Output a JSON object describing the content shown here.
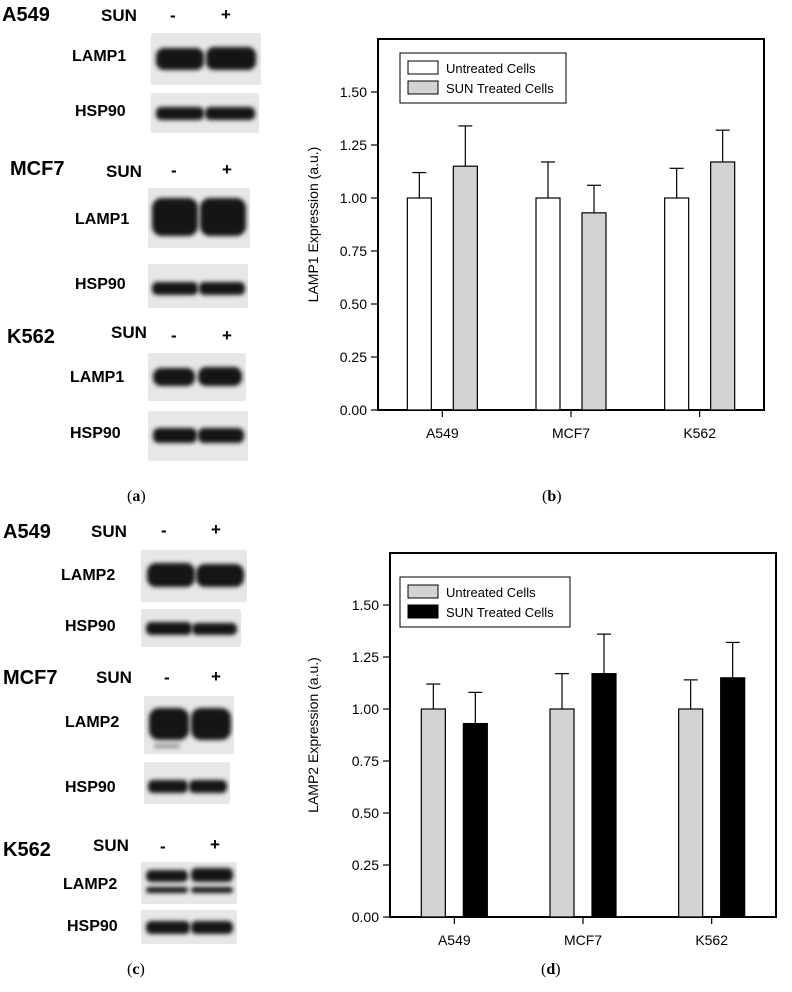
{
  "panels": {
    "a": {
      "letter": "a",
      "rows": [
        {
          "cell": "A549",
          "sun": "SUN",
          "minus": "-",
          "plus": "+",
          "blots": [
            "LAMP1",
            "HSP90"
          ]
        },
        {
          "cell": "MCF7",
          "sun": "SUN",
          "minus": "-",
          "plus": "+",
          "blots": [
            "LAMP1",
            "HSP90"
          ]
        },
        {
          "cell": "K562",
          "sun": "SUN",
          "minus": "-",
          "plus": "+",
          "blots": [
            "LAMP1",
            "HSP90"
          ]
        }
      ]
    },
    "b": {
      "letter": "b"
    },
    "c": {
      "letter": "c",
      "rows": [
        {
          "cell": "A549",
          "sun": "SUN",
          "minus": "-",
          "plus": "+",
          "blots": [
            "LAMP2",
            "HSP90"
          ]
        },
        {
          "cell": "MCF7",
          "sun": "SUN",
          "minus": "-",
          "plus": "+",
          "blots": [
            "LAMP2",
            "HSP90"
          ]
        },
        {
          "cell": "K562",
          "sun": "SUN",
          "minus": "-",
          "plus": "+",
          "blots": [
            "LAMP2",
            "HSP90"
          ]
        }
      ]
    },
    "d": {
      "letter": "d"
    }
  },
  "chart_data": [
    {
      "type": "bar",
      "title": "",
      "xlabel": "",
      "ylabel": "LAMP1 Expression (a.u.)",
      "categories": [
        "A549",
        "MCF7",
        "K562"
      ],
      "ylim": [
        0,
        1.75
      ],
      "yticks": [
        "0.00",
        "0.25",
        "0.50",
        "0.75",
        "1.00",
        "1.25",
        "1.50"
      ],
      "grid": false,
      "legend_position": "top-left",
      "series": [
        {
          "name": "Untreated Cells",
          "values": [
            1.0,
            1.0,
            1.0
          ],
          "errors": [
            0.12,
            0.17,
            0.14
          ],
          "color": "#ffffff"
        },
        {
          "name": "SUN Treated Cells",
          "values": [
            1.15,
            0.93,
            1.17
          ],
          "errors": [
            0.19,
            0.13,
            0.15
          ],
          "color": "#d3d3d3"
        }
      ]
    },
    {
      "type": "bar",
      "title": "",
      "xlabel": "",
      "ylabel": "LAMP2 Expression (a.u.)",
      "categories": [
        "A549",
        "MCF7",
        "K562"
      ],
      "ylim": [
        0,
        1.75
      ],
      "yticks": [
        "0.00",
        "0.25",
        "0.50",
        "0.75",
        "1.00",
        "1.25",
        "1.50"
      ],
      "grid": false,
      "legend_position": "top-left",
      "series": [
        {
          "name": "Untreated Cells",
          "values": [
            1.0,
            1.0,
            1.0
          ],
          "errors": [
            0.12,
            0.17,
            0.14
          ],
          "color": "#d3d3d3"
        },
        {
          "name": "SUN Treated Cells",
          "values": [
            0.93,
            1.17,
            1.15
          ],
          "errors": [
            0.15,
            0.19,
            0.17
          ],
          "color": "#000000"
        }
      ]
    }
  ]
}
